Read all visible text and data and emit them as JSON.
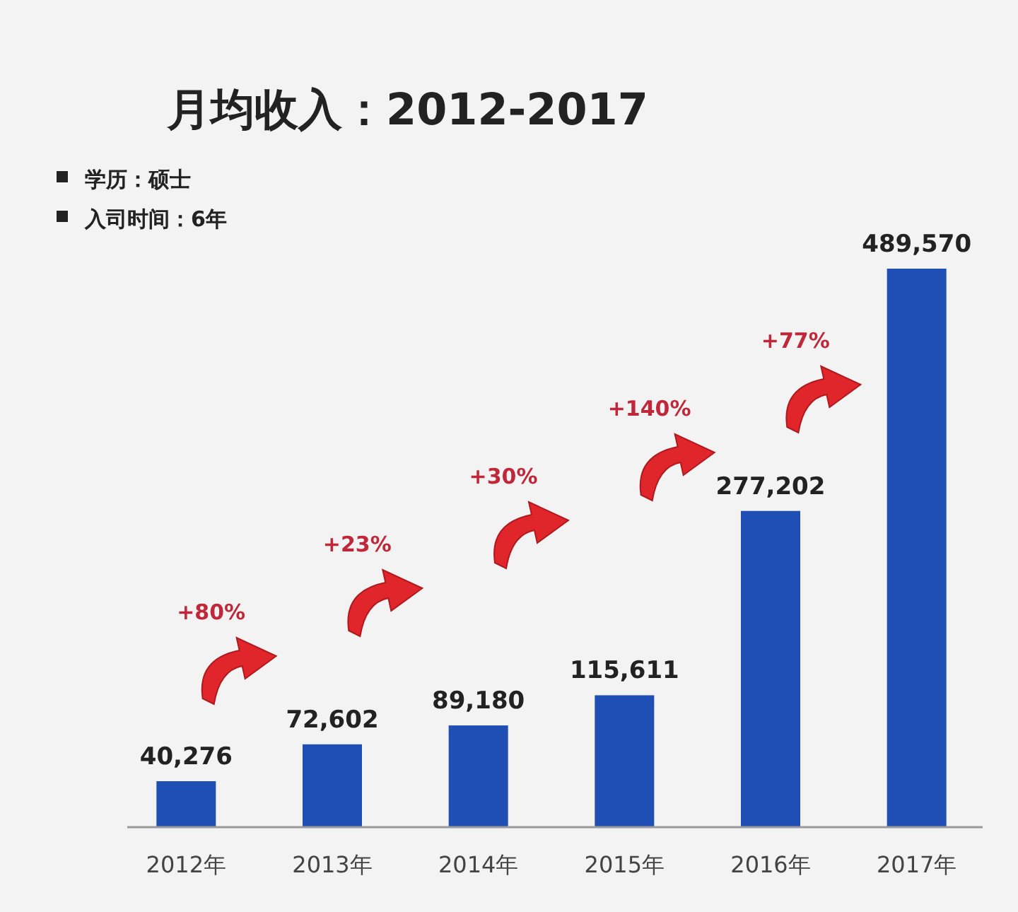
{
  "chart_data": {
    "type": "bar",
    "title": "月均收入：2012-2017",
    "subtitle": [
      "学历：硕士",
      "入司时间：6年"
    ],
    "categories": [
      "2012年",
      "2013年",
      "2014年",
      "2015年",
      "2016年",
      "2017年"
    ],
    "values": [
      40276,
      72602,
      89180,
      115611,
      277202,
      489570
    ],
    "value_labels": [
      "40,276",
      "72,602",
      "89,180",
      "115,611",
      "277,202",
      "489,570"
    ],
    "color": "#1f4fb4",
    "annotations": [
      "+80%",
      "+23%",
      "+30%",
      "+140%",
      "+77%"
    ]
  }
}
